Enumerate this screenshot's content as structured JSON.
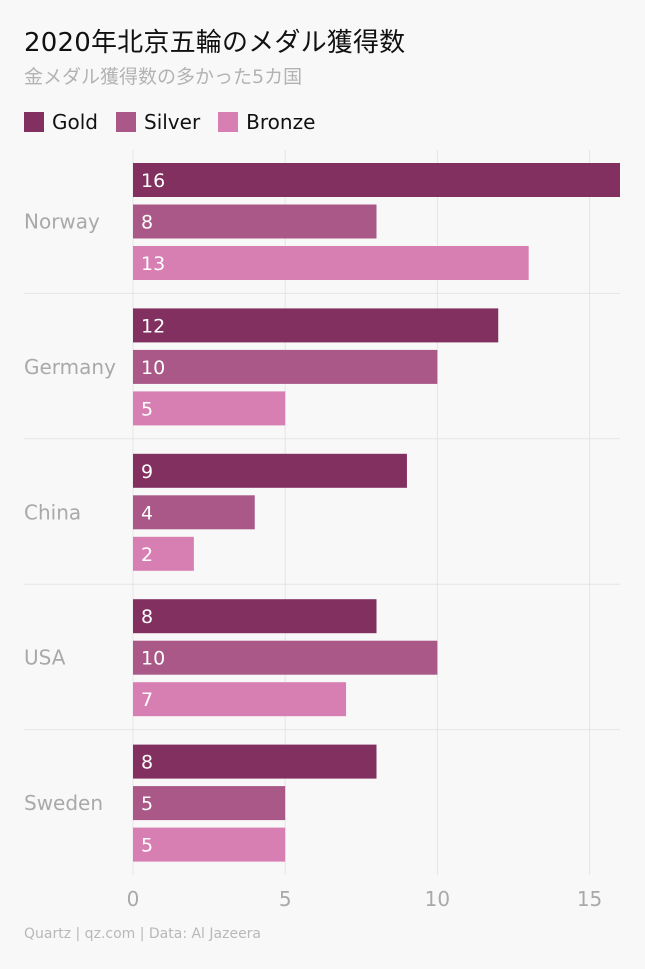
{
  "chart_data": {
    "type": "bar",
    "orientation": "horizontal",
    "title": "2020年北京五輪のメダル獲得数",
    "subtitle": "金メダル獲得数の多かった5カ国",
    "categories": [
      "Norway",
      "Germany",
      "China",
      "USA",
      "Sweden"
    ],
    "series": [
      {
        "name": "Gold",
        "color": "#82305f",
        "values": [
          16,
          12,
          9,
          8,
          8
        ]
      },
      {
        "name": "Silver",
        "color": "#a95887",
        "values": [
          8,
          10,
          4,
          10,
          5
        ]
      },
      {
        "name": "Bronze",
        "color": "#d77fb3",
        "values": [
          13,
          5,
          2,
          7,
          5
        ]
      }
    ],
    "xlim": [
      0,
      16
    ],
    "xticks": [
      0,
      5,
      10,
      15
    ],
    "grid": true,
    "legend_position": "top-left",
    "source": "Quartz | qz.com | Data: Al Jazeera"
  }
}
